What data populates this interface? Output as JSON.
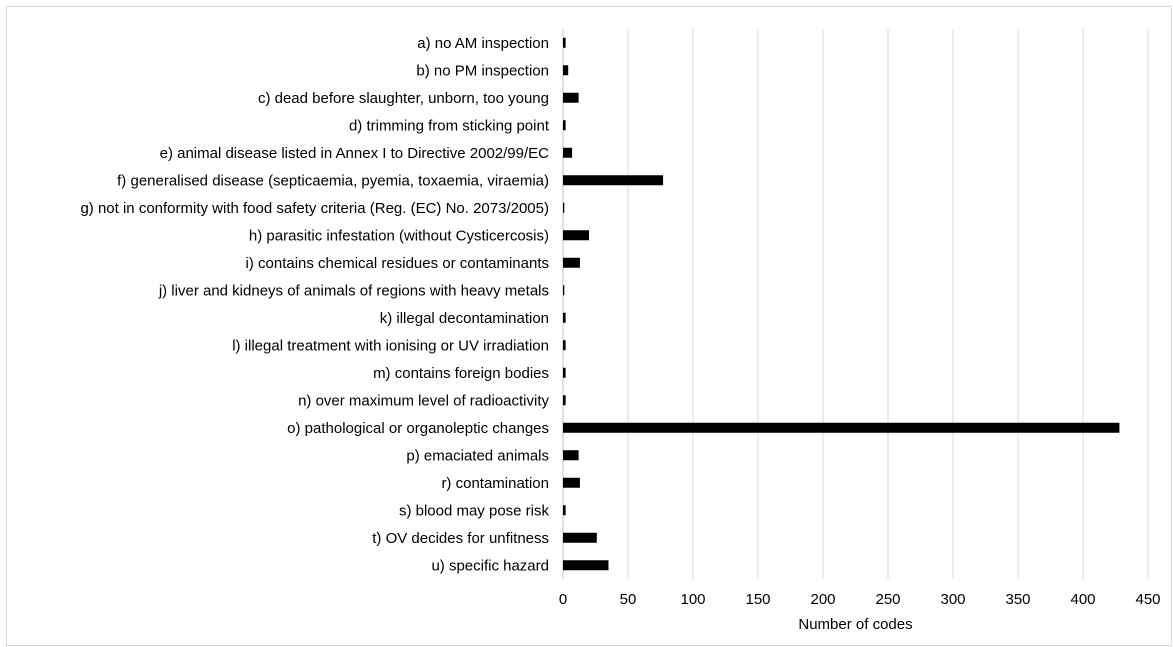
{
  "chart_data": {
    "type": "bar",
    "orientation": "horizontal",
    "categories": [
      "a) no AM inspection",
      "b) no PM inspection",
      "c) dead before slaughter, unborn, too young",
      "d) trimming from sticking point",
      "e) animal disease listed in Annex I to Directive 2002/99/EC",
      "f) generalised disease (septicaemia, pyemia, toxaemia, viraemia)",
      "g) not in conformity with food safety criteria (Reg. (EC) No. 2073/2005)",
      "h) parasitic infestation (without Cysticercosis)",
      "i) contains chemical residues or contaminants",
      "j) liver and kidneys of animals of regions with heavy metals",
      "k) illegal decontamination",
      "l) illegal treatment with ionising or UV irradiation",
      "m) contains foreign bodies",
      "n) over maximum level of radioactivity",
      "o) pathological or organoleptic changes",
      "p) emaciated animals",
      "r) contamination",
      "s) blood may pose risk",
      "t) OV decides for unfitness",
      "u) specific hazard"
    ],
    "values": [
      2,
      4,
      12,
      2,
      7,
      77,
      1,
      20,
      13,
      1,
      2,
      2,
      2,
      2,
      428,
      12,
      13,
      2,
      26,
      35
    ],
    "xlabel": "Number of codes",
    "xlim": [
      0,
      450
    ],
    "xticks": [
      "0",
      "50",
      "100",
      "150",
      "200",
      "250",
      "300",
      "350",
      "400",
      "450"
    ],
    "tick_step": 50,
    "grid": "vertical",
    "legend": "none",
    "bar_color": "#000000"
  }
}
